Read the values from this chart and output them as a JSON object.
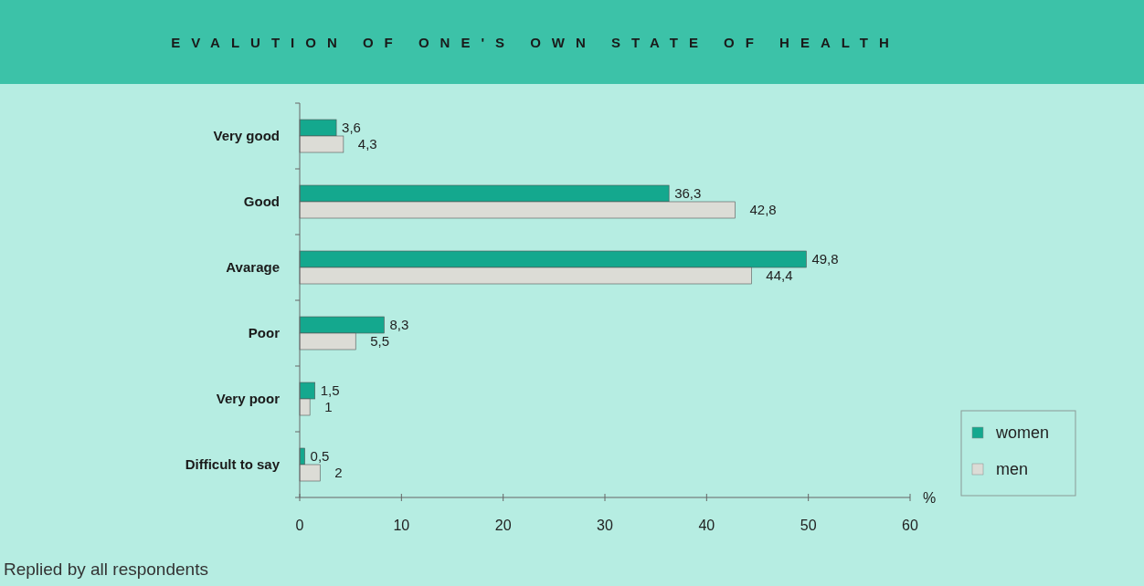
{
  "chart_data": {
    "type": "bar",
    "orientation": "horizontal",
    "title": "EVALUTION OF ONE'S OWN STATE OF HEALTH",
    "xlabel": "%",
    "categories": [
      "Very good",
      "Good",
      "Avarage",
      "Poor",
      "Very poor",
      "Difficult to say"
    ],
    "series": [
      {
        "name": "women",
        "color": "#14a88e",
        "values": [
          3.6,
          36.3,
          49.8,
          8.3,
          1.5,
          0.5
        ],
        "value_labels": [
          "3,6",
          "36,3",
          "49,8",
          "8,3",
          "1,5",
          "0,5"
        ]
      },
      {
        "name": "men",
        "color": "#dcdcd6",
        "values": [
          4.3,
          42.8,
          44.4,
          5.5,
          1,
          2
        ],
        "value_labels": [
          "4,3",
          "42,8",
          "44,4",
          "5,5",
          "1",
          "2"
        ]
      }
    ],
    "xlim": [
      0,
      60
    ],
    "xticks": [
      0,
      10,
      20,
      30,
      40,
      50,
      60
    ],
    "legend": "bottom right",
    "annotations": [
      "Replied by all respondents"
    ]
  }
}
